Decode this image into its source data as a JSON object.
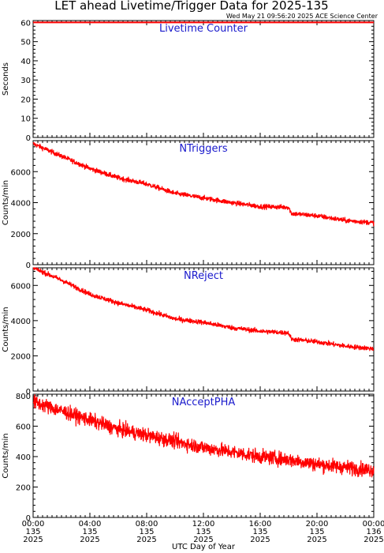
{
  "header": {
    "title": "LET ahead Livetime/Trigger Data for 2025-135",
    "timestamp": "Wed May 21 09:56:20 2025 ACE Science Center"
  },
  "colors": {
    "series": "#ff0000",
    "panel_label": "#1a1acc",
    "axis": "#000000"
  },
  "x_axis": {
    "label": "UTC Day of Year",
    "ticks": [
      {
        "hour": 0,
        "time": "00:00",
        "doy": "135",
        "year": "2025"
      },
      {
        "hour": 4,
        "time": "04:00",
        "doy": "135",
        "year": "2025"
      },
      {
        "hour": 8,
        "time": "08:00",
        "doy": "135",
        "year": "2025"
      },
      {
        "hour": 12,
        "time": "12:00",
        "doy": "135",
        "year": "2025"
      },
      {
        "hour": 16,
        "time": "16:00",
        "doy": "135",
        "year": "2025"
      },
      {
        "hour": 20,
        "time": "20:00",
        "doy": "135",
        "year": "2025"
      },
      {
        "hour": 24,
        "time": "00:00",
        "doy": "136",
        "year": "2025"
      }
    ]
  },
  "chart_data": [
    {
      "type": "line",
      "title": "Livetime Counter",
      "ylabel": "Seconds",
      "xlim": [
        0,
        24
      ],
      "ylim": [
        0,
        61
      ],
      "yticks": [
        0,
        10,
        20,
        30,
        40,
        50,
        60
      ],
      "series": [
        {
          "x": [
            0,
            24
          ],
          "values": [
            60,
            60
          ],
          "noise": 0
        }
      ]
    },
    {
      "type": "line",
      "title": "NTriggers",
      "ylabel": "Counts/min",
      "xlim": [
        0,
        24
      ],
      "ylim": [
        0,
        8000
      ],
      "yticks": [
        0,
        2000,
        4000,
        6000
      ],
      "series": [
        {
          "x": [
            0,
            2,
            4,
            6,
            8,
            10,
            12,
            14,
            16,
            18,
            18.2,
            20,
            22,
            24
          ],
          "values": [
            7800,
            7000,
            6200,
            5600,
            5200,
            4600,
            4300,
            4000,
            3750,
            3700,
            3300,
            3150,
            2850,
            2700
          ],
          "noise": 150
        }
      ]
    },
    {
      "type": "line",
      "title": "NReject",
      "ylabel": "Counts/min",
      "xlim": [
        0,
        24
      ],
      "ylim": [
        0,
        7000
      ],
      "yticks": [
        0,
        2000,
        4000,
        6000
      ],
      "series": [
        {
          "x": [
            0,
            2,
            4,
            6,
            8,
            10,
            12,
            14,
            16,
            18,
            18.2,
            20,
            22,
            24
          ],
          "values": [
            7000,
            6300,
            5500,
            5000,
            4600,
            4100,
            3900,
            3600,
            3400,
            3300,
            2950,
            2800,
            2550,
            2400
          ],
          "noise": 130
        }
      ]
    },
    {
      "type": "line",
      "title": "NAcceptPHA",
      "ylabel": "Counts/min",
      "xlim": [
        0,
        24
      ],
      "ylim": [
        0,
        810
      ],
      "yticks": [
        0,
        200,
        400,
        600,
        800
      ],
      "series": [
        {
          "x": [
            0,
            2,
            4,
            6,
            8,
            10,
            12,
            14,
            16,
            18,
            20,
            22,
            24
          ],
          "values": [
            760,
            700,
            640,
            580,
            540,
            500,
            460,
            430,
            400,
            380,
            350,
            330,
            310
          ],
          "noise": 45
        }
      ]
    }
  ]
}
